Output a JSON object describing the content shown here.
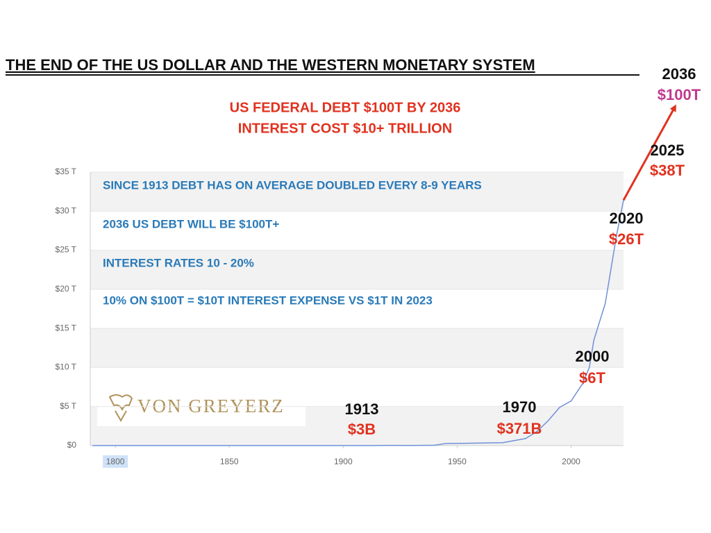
{
  "chart_data": {
    "type": "line",
    "title": "THE END OF THE US DOLLAR AND THE WESTERN MONETARY SYSTEM",
    "subtitle": [
      "US FEDERAL DEBT $100T BY 2036",
      "INTEREST COST $10+ TRILLION"
    ],
    "notes": [
      "SINCE 1913 DEBT HAS ON AVERAGE DOUBLED EVERY 8-9 YEARS",
      "2036 US DEBT WILL BE $100T+",
      "INTEREST RATES 10 - 20%",
      "10% ON $100T = $10T INTEREST EXPENSE VS $1T IN 2023"
    ],
    "logo": "VON GREYERZ",
    "x": [
      1790,
      1860,
      1865,
      1913,
      1919,
      1930,
      1940,
      1945,
      1970,
      1980,
      1985,
      1990,
      1995,
      2000,
      2005,
      2008,
      2010,
      2015,
      2020,
      2023
    ],
    "values": [
      0,
      0,
      0.003,
      0.003,
      0.027,
      0.016,
      0.043,
      0.26,
      0.37,
      0.9,
      1.8,
      3.2,
      4.9,
      5.7,
      7.9,
      10,
      13.5,
      18.2,
      27,
      31.4
    ],
    "color": "#6f8fd8",
    "xlim": [
      1789,
      2023
    ],
    "xticks": [
      1800,
      1850,
      1900,
      1950,
      2000
    ],
    "ylim": [
      0,
      35
    ],
    "yticks": [
      {
        "value": 0,
        "label": "$0"
      },
      {
        "value": 5,
        "label": "$5 T"
      },
      {
        "value": 10,
        "label": "$10 T"
      },
      {
        "value": 15,
        "label": "$15 T"
      },
      {
        "value": 20,
        "label": "$20 T"
      },
      {
        "value": 25,
        "label": "$25 T"
      },
      {
        "value": 30,
        "label": "$30 T"
      },
      {
        "value": 35,
        "label": "$35 T"
      }
    ],
    "grid": true,
    "annotations": [
      {
        "year": "2036",
        "amount": "$100T",
        "color": "#c0398f"
      },
      {
        "year": "2025",
        "amount": "$38T",
        "color": "#e0321f"
      },
      {
        "year": "2020",
        "amount": "$26T",
        "color": "#e0321f"
      },
      {
        "year": "2000",
        "amount": "$6T",
        "color": "#e0321f"
      },
      {
        "year": "1970",
        "amount": "$371B",
        "color": "#e0321f"
      },
      {
        "year": "1913",
        "amount": "$3B",
        "color": "#e0321f"
      }
    ],
    "arrow_color": "#e0321f"
  }
}
